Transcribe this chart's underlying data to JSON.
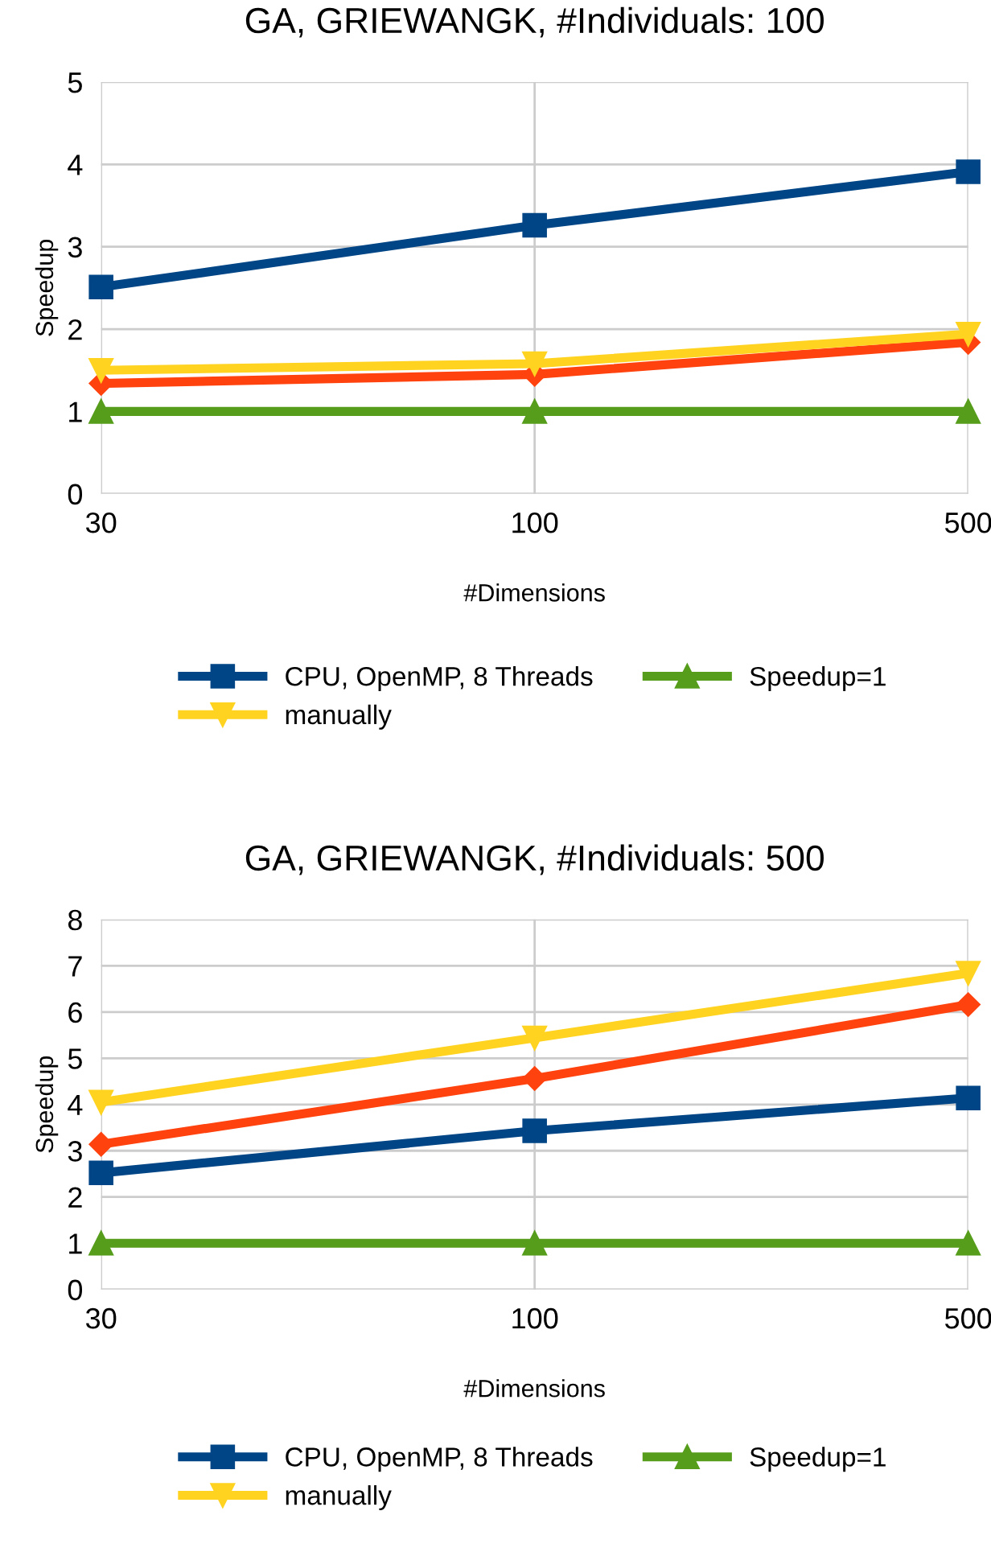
{
  "chart_data": [
    {
      "type": "line",
      "title": "GA, GRIEWANGK, #Individuals: 100",
      "xlabel": "#Dimensions",
      "ylabel": "Speedup",
      "categories": [
        "30",
        "100",
        "500"
      ],
      "ylim": [
        0,
        5
      ],
      "yticks": [
        0,
        1,
        2,
        3,
        4,
        5
      ],
      "grid": true,
      "legend": "bottom",
      "series": [
        {
          "name": "CPU, OpenMP, 8 Threads",
          "color": "#004586",
          "marker": "square",
          "values": [
            2.51,
            3.26,
            3.91
          ]
        },
        {
          "color": "#ff420e",
          "marker": "diamond",
          "values": [
            1.34,
            1.45,
            1.84
          ]
        },
        {
          "name": "manually",
          "color": "#ffd320",
          "marker": "triangle",
          "values": [
            1.5,
            1.58,
            1.94
          ]
        },
        {
          "name": "Speedup=1",
          "color": "#579d1c",
          "marker": "triangle",
          "values": [
            1,
            1,
            1
          ]
        }
      ]
    },
    {
      "type": "line",
      "title": "GA, GRIEWANGK, #Individuals: 500",
      "xlabel": "#Dimensions",
      "ylabel": "Speedup",
      "categories": [
        "30",
        "100",
        "500"
      ],
      "ylim": [
        0,
        8
      ],
      "yticks": [
        0,
        1,
        2,
        3,
        4,
        5,
        6,
        7,
        8
      ],
      "grid": true,
      "legend": "bottom",
      "series": [
        {
          "name": "CPU, OpenMP, 8 Threads",
          "color": "#004586",
          "marker": "square",
          "values": [
            2.52,
            3.43,
            4.14
          ]
        },
        {
          "color": "#ff420e",
          "marker": "diamond",
          "values": [
            3.14,
            4.56,
            6.16
          ]
        },
        {
          "name": "manually",
          "color": "#ffd320",
          "marker": "triangle",
          "values": [
            4.05,
            5.44,
            6.84
          ]
        },
        {
          "name": "Speedup=1",
          "color": "#579d1c",
          "marker": "triangle",
          "values": [
            1,
            1,
            1
          ]
        }
      ]
    }
  ]
}
